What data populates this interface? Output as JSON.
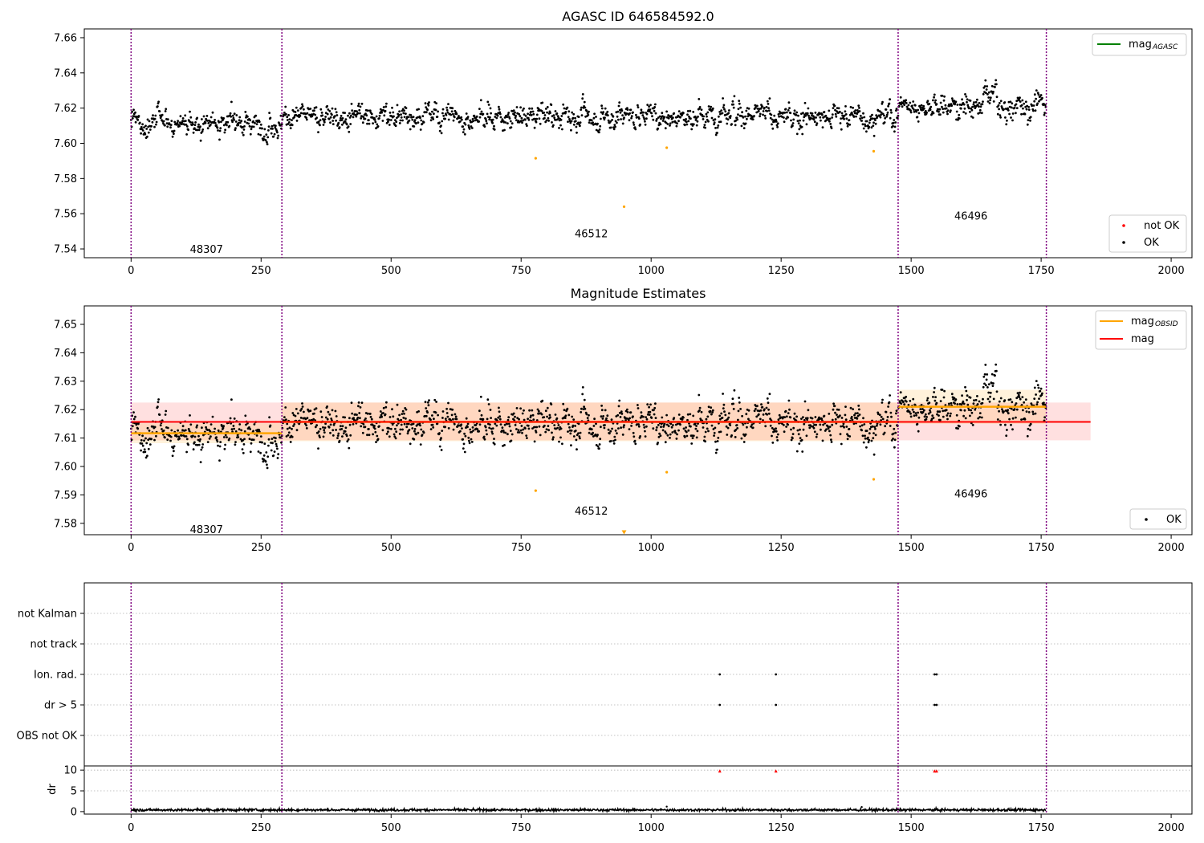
{
  "figure": {
    "title_top": "AGASC ID 646584592.0",
    "title_mid": "Magnitude Estimates"
  },
  "chart_data": [
    {
      "type": "scatter",
      "title": "AGASC ID 646584592.0",
      "xlim": [
        -90,
        2040
      ],
      "ylim": [
        7.535,
        7.665
      ],
      "xticks": [
        0,
        250,
        500,
        750,
        1000,
        1250,
        1500,
        1750,
        2000
      ],
      "yticks": [
        "7.54",
        "7.56",
        "7.58",
        "7.60",
        "7.62",
        "7.64",
        "7.66"
      ],
      "obsid_boundaries": [
        0,
        290,
        1475,
        1760
      ],
      "obsid_labels": [
        {
          "text": "48307",
          "x": 145,
          "y": 7.54
        },
        {
          "text": "46512",
          "x": 885,
          "y": 7.549
        },
        {
          "text": "46496",
          "x": 1615,
          "y": 7.559
        }
      ],
      "segments": [
        {
          "x": [
            0,
            290
          ],
          "mean": 7.612
        },
        {
          "x": [
            290,
            1475
          ],
          "mean": 7.6155
        },
        {
          "x": [
            1475,
            1760
          ],
          "mean": 7.621
        }
      ],
      "outliers": [
        [
          778,
          7.5915
        ],
        [
          948,
          7.564
        ],
        [
          1030,
          7.5975
        ],
        [
          1428,
          7.5955
        ]
      ],
      "legend_upper": {
        "line_label": "mag",
        "line_sub": "AGASC",
        "color": "#008000"
      },
      "legend_lower": [
        {
          "label": "not OK",
          "color": "#ff0000"
        },
        {
          "label": "OK",
          "color": "#000000"
        }
      ],
      "colors": {
        "points": "#000000",
        "outliers": "#ffa500",
        "boundary": "#800080"
      }
    },
    {
      "type": "scatter",
      "title": "Magnitude Estimates",
      "xlim": [
        -90,
        2040
      ],
      "ylim": [
        7.576,
        7.6565
      ],
      "xticks": [
        0,
        250,
        500,
        750,
        1000,
        1250,
        1500,
        1750,
        2000
      ],
      "yticks": [
        "7.58",
        "7.59",
        "7.60",
        "7.61",
        "7.62",
        "7.63",
        "7.64",
        "7.65"
      ],
      "obsid_labels": [
        {
          "text": "48307",
          "x": 145,
          "y": 7.578
        },
        {
          "text": "46512",
          "x": 885,
          "y": 7.5845
        },
        {
          "text": "46496",
          "x": 1615,
          "y": 7.5905
        }
      ],
      "mag": {
        "value": 7.6157,
        "band": [
          7.6092,
          7.6225
        ],
        "x_range": [
          0,
          1845
        ],
        "color": "#ff0000"
      },
      "mag_obsid": [
        {
          "x": [
            0,
            290
          ],
          "value": 7.6117,
          "band": [
            7.6082,
            7.6152
          ]
        },
        {
          "x": [
            290,
            1475
          ],
          "value": 7.6157,
          "band": [
            7.6089,
            7.6225
          ]
        },
        {
          "x": [
            1475,
            1760
          ],
          "value": 7.621,
          "band": [
            7.615,
            7.627
          ]
        }
      ],
      "outliers": [
        [
          778,
          7.5915
        ],
        [
          1030,
          7.598
        ],
        [
          1428,
          7.5955
        ]
      ],
      "offscale_marker": [
        948,
        7.577
      ],
      "legend_upper": [
        {
          "label": "mag",
          "sub": "OBSID",
          "color": "#ffa500"
        },
        {
          "label": "mag",
          "sub": "",
          "color": "#ff0000"
        }
      ],
      "legend_lower": [
        {
          "label": "OK",
          "color": "#000000"
        }
      ]
    },
    {
      "type": "scatter",
      "categories": [
        "not Kalman",
        "not track",
        "Ion. rad.",
        "dr > 5",
        "OBS not OK"
      ],
      "flag_points": [
        {
          "category": "Ion. rad.",
          "x": [
            1132,
            1240,
            1545,
            1549
          ]
        },
        {
          "category": "dr > 5",
          "x": [
            1132,
            1240,
            1545,
            1549
          ]
        }
      ]
    },
    {
      "type": "line",
      "ylabel": "dr",
      "ylim": [
        -0.6,
        11
      ],
      "yticks": [
        "0",
        "5",
        "10"
      ],
      "xticks": [
        0,
        250,
        500,
        750,
        1000,
        1250,
        1500,
        1750,
        2000
      ],
      "capped_points": [
        1132,
        1240,
        1545,
        1549
      ],
      "cap_value": 9.8,
      "spikes": [
        [
          1030,
          1.2
        ],
        [
          1405,
          1.1
        ]
      ],
      "colors": {
        "trace": "#000000",
        "capped": "#ff0000"
      }
    }
  ]
}
